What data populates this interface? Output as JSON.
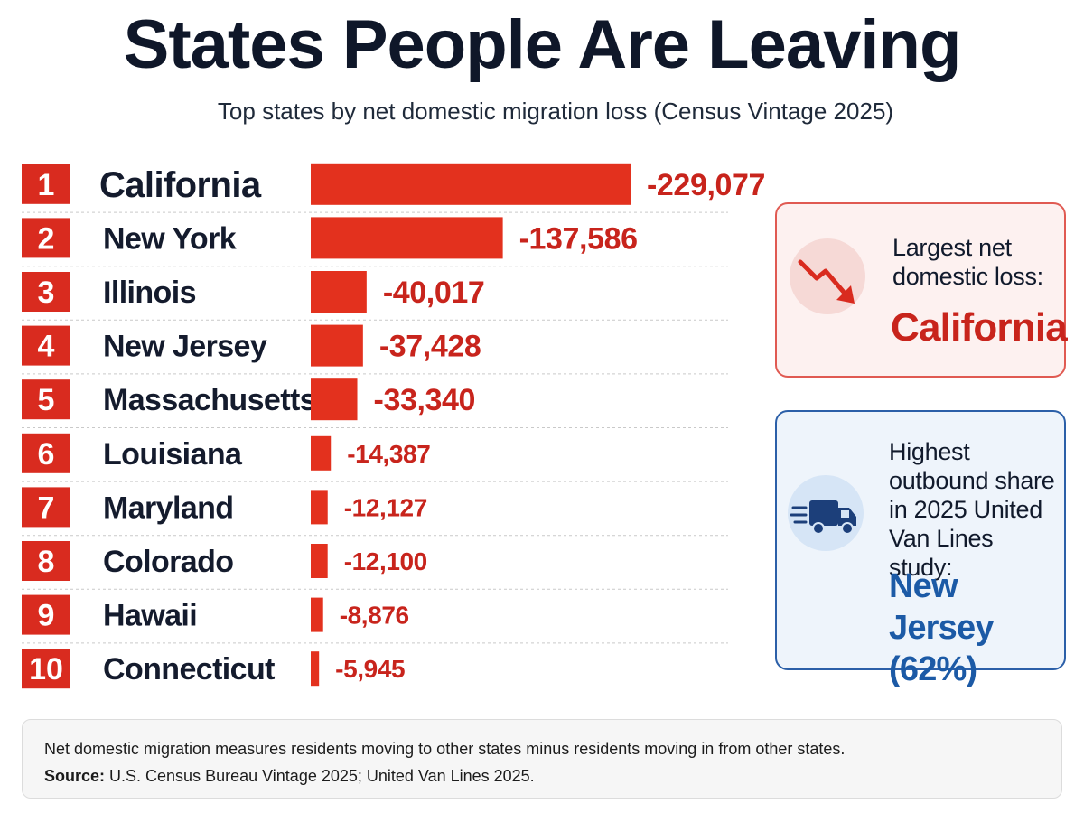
{
  "title": "States People Are Leaving",
  "subtitle": "Top states by net domestic migration loss (Census Vintage 2025)",
  "colors": {
    "bar": "#e3311e",
    "value_text": "#c8241c",
    "rank_badge": "#d92b1f",
    "accent_blue": "#1c5aa6",
    "title": "#0f1729"
  },
  "chart_data": {
    "type": "bar",
    "orientation": "horizontal",
    "categories": [
      "California",
      "New York",
      "Illinois",
      "New Jersey",
      "Massachusetts",
      "Louisiana",
      "Maryland",
      "Colorado",
      "Hawaii",
      "Connecticut"
    ],
    "ranks": [
      "1",
      "2",
      "3",
      "4",
      "5",
      "6",
      "7",
      "8",
      "9",
      "10"
    ],
    "values": [
      -229077,
      -137586,
      -40017,
      -37428,
      -33340,
      -14387,
      -12127,
      -12100,
      -8876,
      -5945
    ],
    "value_labels": [
      "-229,077",
      "-137,586",
      "-40,017",
      "-37,428",
      "-33,340",
      "-14,387",
      "-12,127",
      "-12,100",
      "-8,876",
      "-5,945"
    ],
    "xlim": [
      0,
      229077
    ],
    "grid": false,
    "legend": "none"
  },
  "callouts": {
    "largest_loss": {
      "icon": "trending-down-arrow-icon",
      "label": "Largest net domestic loss:",
      "value": "California"
    },
    "outbound_share": {
      "icon": "moving-truck-icon",
      "label": "Highest outbound share in 2025 United Van Lines study:",
      "value": "New Jersey (62%)"
    }
  },
  "footnote": {
    "definition": "Net domestic migration measures residents moving to other states minus residents moving in from other states.",
    "source_label": "Source:",
    "source_text": " U.S. Census Bureau Vintage 2025; United Van Lines 2025."
  }
}
